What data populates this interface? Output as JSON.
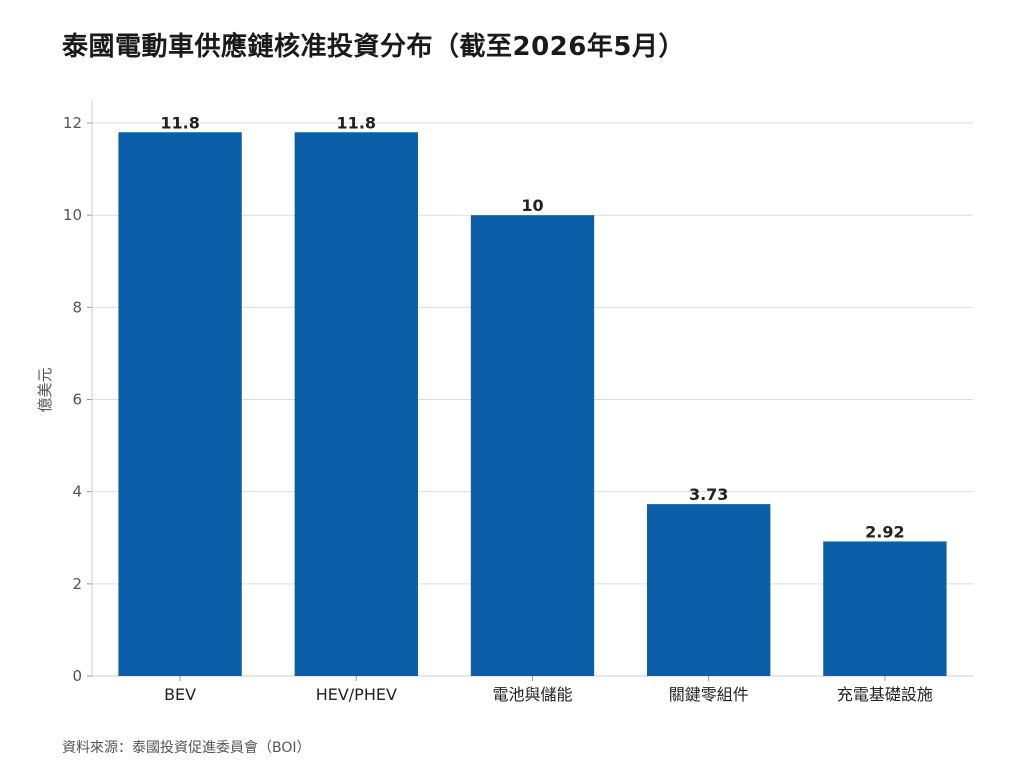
{
  "chart_data": {
    "type": "bar",
    "title": "泰國電動車供應鏈核准投資分布（截至2026年5月）",
    "ylabel": "億美元",
    "xlabel": "",
    "categories": [
      "BEV",
      "HEV/PHEV",
      "電池與儲能",
      "關鍵零組件",
      "充電基礎設施"
    ],
    "values": [
      11.8,
      11.8,
      10,
      3.73,
      2.92
    ],
    "value_labels": [
      "11.8",
      "11.8",
      "10",
      "3.73",
      "2.92"
    ],
    "ylim": [
      0,
      12.5
    ],
    "yticks": [
      0,
      2,
      4,
      6,
      8,
      10,
      12
    ],
    "grid": true,
    "legend": "none",
    "bar_color": "#0b5ea8",
    "source": "資料來源：泰國投資促進委員會（BOI）"
  }
}
